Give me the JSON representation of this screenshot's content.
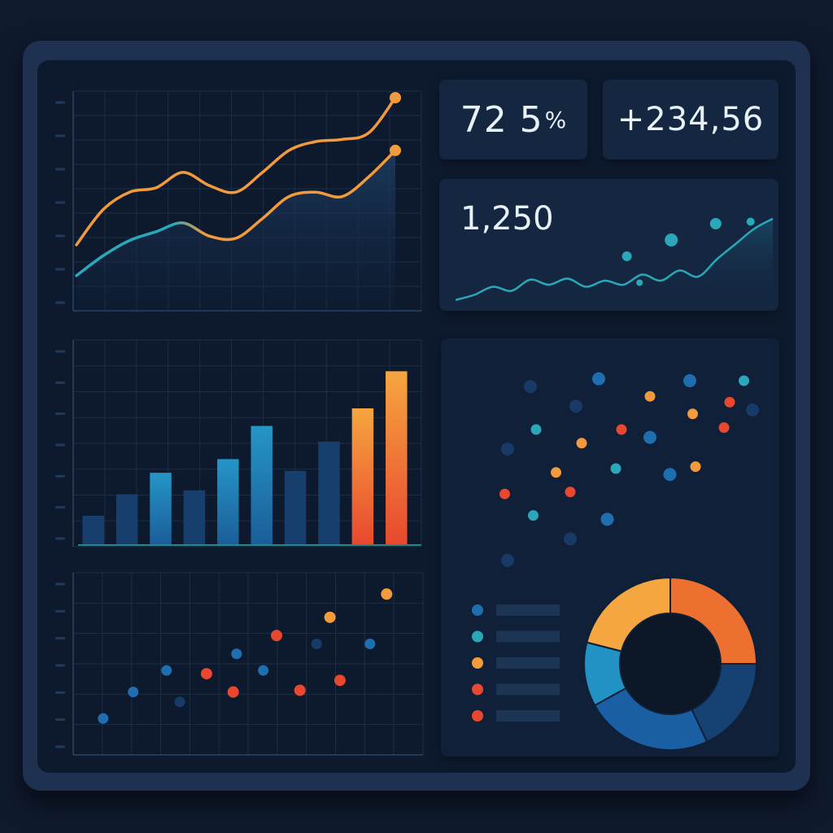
{
  "kpis": {
    "percent": {
      "value": "72 5",
      "unit": "%"
    },
    "delta": {
      "value": "+234,56"
    },
    "count": {
      "value": "1,250"
    }
  },
  "colors": {
    "orange": "#f39a3c",
    "teal": "#2aa7b9",
    "blue": "#1f6fb0",
    "red": "#e8482f",
    "amber": "#f6a640",
    "navy": "#173a66",
    "grid": "#1b2d47"
  },
  "chart_data": [
    {
      "id": "line-top",
      "type": "line",
      "x": [
        0,
        1,
        2,
        3,
        4,
        5,
        6,
        7,
        8,
        9,
        10,
        11,
        12
      ],
      "xlim": [
        0,
        12
      ],
      "ylim": [
        0,
        100
      ],
      "grid": true,
      "series": [
        {
          "color": "orange",
          "values": [
            30,
            46,
            54,
            56,
            63,
            57,
            54,
            63,
            73,
            77,
            78,
            81,
            97
          ]
        },
        {
          "color": "teal_to_orange",
          "values": [
            16,
            25,
            32,
            36,
            40,
            34,
            33,
            42,
            52,
            54,
            52,
            61,
            73
          ]
        }
      ]
    },
    {
      "id": "bar-mid",
      "type": "bar",
      "categories": [
        "1",
        "2",
        "3",
        "4",
        "5",
        "6",
        "7",
        "8",
        "9",
        "10"
      ],
      "values": [
        15,
        26,
        37,
        28,
        44,
        61,
        38,
        53,
        70,
        89
      ],
      "colors": [
        "navy",
        "navy",
        "blue",
        "navy",
        "blue",
        "blue",
        "navy",
        "navy",
        "orange",
        "orange"
      ],
      "ylim": [
        0,
        100
      ],
      "grid": true
    },
    {
      "id": "scatter-bottom",
      "type": "scatter",
      "xlim": [
        0,
        100
      ],
      "ylim": [
        0,
        100
      ],
      "grid": true,
      "points": [
        {
          "x": 8,
          "y": 18,
          "c": "blue"
        },
        {
          "x": 17,
          "y": 34,
          "c": "blue"
        },
        {
          "x": 27,
          "y": 47,
          "c": "blue"
        },
        {
          "x": 31,
          "y": 28,
          "c": "navy"
        },
        {
          "x": 39,
          "y": 45,
          "c": "red"
        },
        {
          "x": 47,
          "y": 34,
          "c": "red"
        },
        {
          "x": 48,
          "y": 57,
          "c": "blue"
        },
        {
          "x": 56,
          "y": 47,
          "c": "blue"
        },
        {
          "x": 60,
          "y": 68,
          "c": "red"
        },
        {
          "x": 67,
          "y": 35,
          "c": "red"
        },
        {
          "x": 72,
          "y": 63,
          "c": "navy"
        },
        {
          "x": 76,
          "y": 79,
          "c": "orange"
        },
        {
          "x": 79,
          "y": 41,
          "c": "red"
        },
        {
          "x": 88,
          "y": 63,
          "c": "blue"
        },
        {
          "x": 93,
          "y": 93,
          "c": "orange"
        }
      ]
    },
    {
      "id": "sparkline-count",
      "type": "line",
      "xlim": [
        0,
        100
      ],
      "ylim": [
        0,
        100
      ],
      "series": [
        {
          "color": "teal",
          "values": [
            5,
            10,
            18,
            14,
            25,
            20,
            26,
            18,
            24,
            20,
            30,
            24,
            34,
            28,
            45,
            60,
            75,
            85
          ]
        }
      ],
      "points": [
        {
          "x": 54,
          "y": 48,
          "c": "teal"
        },
        {
          "x": 68,
          "y": 64,
          "c": "teal"
        },
        {
          "x": 82,
          "y": 80,
          "c": "teal"
        },
        {
          "x": 93,
          "y": 82,
          "c": "teal"
        },
        {
          "x": 58,
          "y": 22,
          "c": "teal"
        }
      ]
    },
    {
      "id": "scatter-right",
      "type": "scatter",
      "xlim": [
        0,
        100
      ],
      "ylim": [
        0,
        100
      ],
      "points": [
        {
          "x": 20,
          "y": 92,
          "c": "navy"
        },
        {
          "x": 44,
          "y": 96,
          "c": "blue"
        },
        {
          "x": 62,
          "y": 87,
          "c": "orange"
        },
        {
          "x": 76,
          "y": 95,
          "c": "blue"
        },
        {
          "x": 90,
          "y": 84,
          "c": "red"
        },
        {
          "x": 95,
          "y": 95,
          "c": "teal"
        },
        {
          "x": 36,
          "y": 82,
          "c": "navy"
        },
        {
          "x": 77,
          "y": 78,
          "c": "orange"
        },
        {
          "x": 98,
          "y": 80,
          "c": "navy"
        },
        {
          "x": 22,
          "y": 70,
          "c": "teal"
        },
        {
          "x": 52,
          "y": 70,
          "c": "red"
        },
        {
          "x": 38,
          "y": 63,
          "c": "orange"
        },
        {
          "x": 62,
          "y": 66,
          "c": "blue"
        },
        {
          "x": 88,
          "y": 71,
          "c": "red"
        },
        {
          "x": 12,
          "y": 60,
          "c": "navy"
        },
        {
          "x": 29,
          "y": 48,
          "c": "orange"
        },
        {
          "x": 50,
          "y": 50,
          "c": "teal"
        },
        {
          "x": 69,
          "y": 47,
          "c": "blue"
        },
        {
          "x": 78,
          "y": 51,
          "c": "orange"
        },
        {
          "x": 11,
          "y": 37,
          "c": "red"
        },
        {
          "x": 34,
          "y": 38,
          "c": "red"
        },
        {
          "x": 21,
          "y": 26,
          "c": "teal"
        },
        {
          "x": 47,
          "y": 24,
          "c": "blue"
        },
        {
          "x": 34,
          "y": 14,
          "c": "navy"
        },
        {
          "x": 12,
          "y": 3,
          "c": "navy"
        }
      ]
    },
    {
      "id": "donut",
      "type": "pie",
      "values": [
        25,
        18,
        24,
        12,
        21
      ],
      "colors": [
        "orange",
        "navy",
        "blue",
        "teal",
        "amber"
      ],
      "legend": [
        {
          "c": "blue"
        },
        {
          "c": "teal"
        },
        {
          "c": "orange"
        },
        {
          "c": "red"
        },
        {
          "c": "red"
        }
      ]
    }
  ]
}
